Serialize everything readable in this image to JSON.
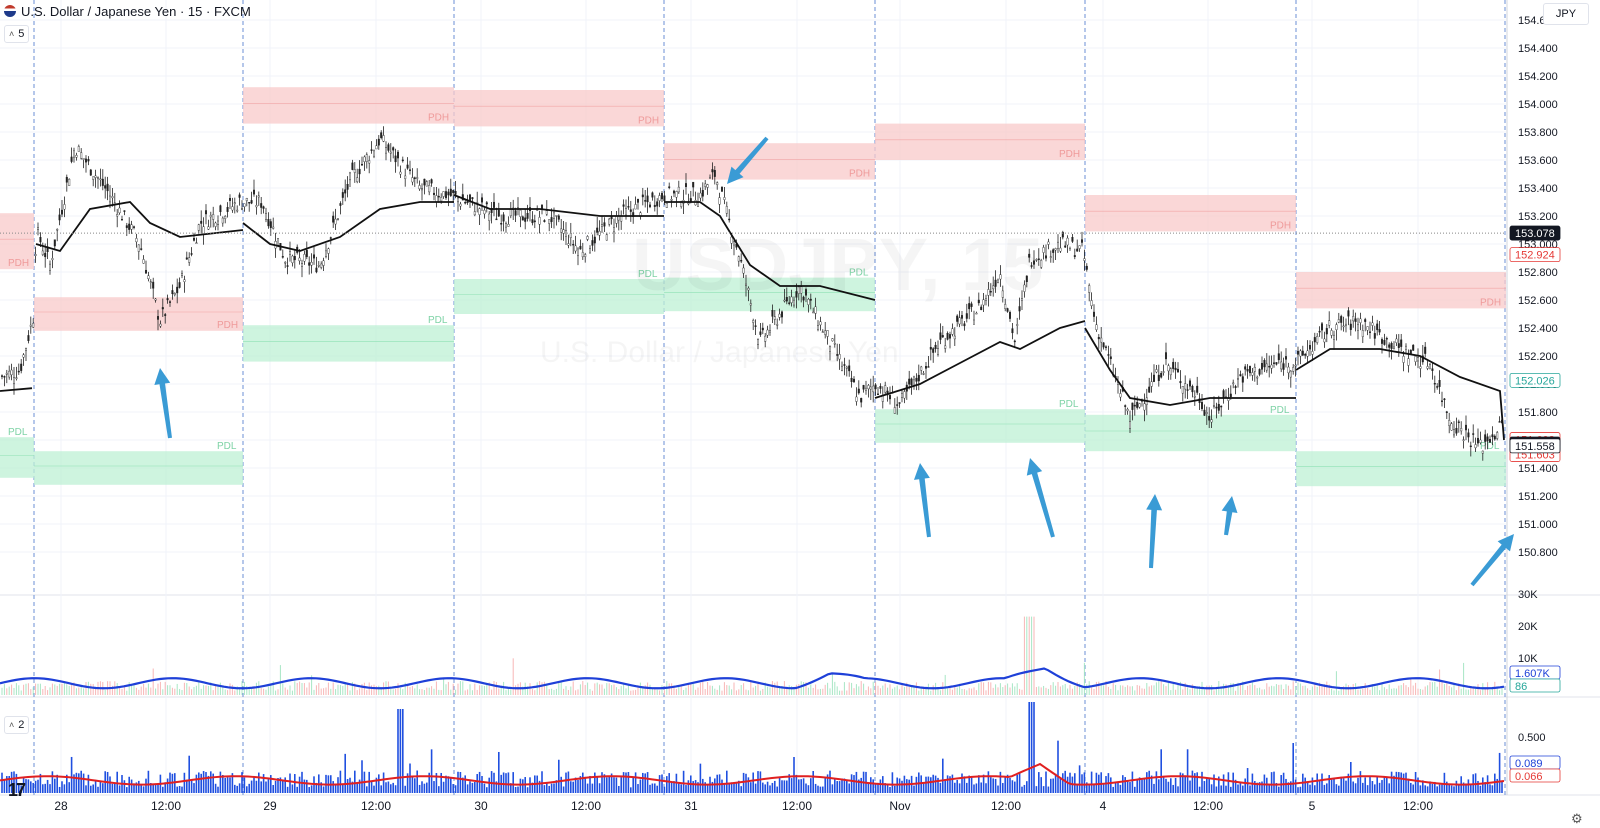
{
  "header": {
    "title": "U.S. Dollar / Japanese Yen · 15 · FXCM",
    "collapse_label": "5",
    "indicator2_label": "2",
    "currency_button": "JPY",
    "watermark_symbol": "USDJPY, 15",
    "watermark_name": "U.S. Dollar / Japanese Yen"
  },
  "colors": {
    "pdh_zone": "#f8c9c9",
    "pdl_zone": "#bdf0d4",
    "arrow": "#3a9bd5",
    "vwap": "#111111",
    "volume_ma": "#1e40d8",
    "rsi_bar": "#1f4fe0",
    "rsi_ma": "#e02020"
  },
  "price_axis": {
    "ticks": [
      "154.600",
      "154.400",
      "154.200",
      "154.000",
      "153.800",
      "153.600",
      "153.400",
      "153.200",
      "153.000",
      "152.800",
      "152.600",
      "152.400",
      "152.200",
      "152.000",
      "151.800",
      "151.600",
      "151.400",
      "151.200",
      "151.000",
      "150.800"
    ],
    "tick_values": [
      154.6,
      154.4,
      154.2,
      154.0,
      153.8,
      153.6,
      153.4,
      153.2,
      153.0,
      152.8,
      152.6,
      152.4,
      152.2,
      152.0,
      151.8,
      151.6,
      151.4,
      151.2,
      151.0,
      150.8
    ],
    "badges": [
      {
        "label": "153.078",
        "value": 153.078,
        "bg": "#131722",
        "fg": "#ffffff"
      },
      {
        "label": "152.924",
        "value": 152.924,
        "bg": "#ffffff",
        "fg": "#e53935"
      },
      {
        "label": "152.026",
        "value": 152.026,
        "bg": "#ffffff",
        "fg": "#26a69a"
      },
      {
        "label": "151.603",
        "value": 151.603,
        "bg": "#ffffff",
        "fg": "#e53935",
        "offset": 0
      },
      {
        "label": "151.603",
        "value": 151.603,
        "bg": "#ffffff",
        "fg": "#e53935",
        "offset": 1
      },
      {
        "label": "151.571",
        "value": 151.571,
        "bg": "#131722",
        "fg": "#ffffff"
      },
      {
        "label": "151.558",
        "value": 151.558,
        "bg": "#ffffff",
        "fg": "#131722"
      }
    ]
  },
  "volume_axis": {
    "ticks": [
      "30K",
      "20K",
      "10K"
    ],
    "badges": [
      {
        "label": "1.607K",
        "fg": "#1e40d8"
      },
      {
        "label": "86",
        "fg": "#26a69a"
      }
    ]
  },
  "rsi_axis": {
    "ticks": [
      "0.500"
    ],
    "badges": [
      {
        "label": "0.089",
        "fg": "#1e40d8"
      },
      {
        "label": "0.066",
        "fg": "#e53935"
      }
    ]
  },
  "time_axis": {
    "labels": [
      {
        "text": "28"
      },
      {
        "text": "12:00"
      },
      {
        "text": "29"
      },
      {
        "text": "12:00"
      },
      {
        "text": "30"
      },
      {
        "text": "12:00"
      },
      {
        "text": "31"
      },
      {
        "text": "12:00"
      },
      {
        "text": "Nov"
      },
      {
        "text": "12:00"
      },
      {
        "text": "4"
      },
      {
        "text": "12:00"
      },
      {
        "text": "5"
      },
      {
        "text": "12:00"
      }
    ]
  },
  "zones": [
    {
      "type": "PDH",
      "label": "PDH",
      "day": 0,
      "hi": 153.22,
      "lo": 152.82
    },
    {
      "type": "PDL",
      "label": "PDL",
      "day": 0,
      "hi": 151.62,
      "lo": 151.33
    },
    {
      "type": "PDH",
      "label": "PDH",
      "day": 1,
      "hi": 152.62,
      "lo": 152.38
    },
    {
      "type": "PDL",
      "label": "PDL",
      "day": 1,
      "hi": 151.52,
      "lo": 151.28
    },
    {
      "type": "PDH",
      "label": "PDH",
      "day": 2,
      "hi": 154.12,
      "lo": 153.86
    },
    {
      "type": "PDL",
      "label": "PDL",
      "day": 2,
      "hi": 152.42,
      "lo": 152.16
    },
    {
      "type": "PDH",
      "label": "PDH",
      "day": 3,
      "hi": 154.1,
      "lo": 153.84
    },
    {
      "type": "PDL",
      "label": "PDL",
      "day": 3,
      "hi": 152.75,
      "lo": 152.5
    },
    {
      "type": "PDH",
      "label": "PDH",
      "day": 4,
      "hi": 153.72,
      "lo": 153.46
    },
    {
      "type": "PDL",
      "label": "PDL",
      "day": 4,
      "hi": 152.76,
      "lo": 152.52
    },
    {
      "type": "PDH",
      "label": "PDH",
      "day": 5,
      "hi": 153.86,
      "lo": 153.6
    },
    {
      "type": "PDL",
      "label": "PDL",
      "day": 5,
      "hi": 151.82,
      "lo": 151.58
    },
    {
      "type": "PDH",
      "label": "PDH",
      "day": 6,
      "hi": 153.35,
      "lo": 153.09
    },
    {
      "type": "PDL",
      "label": "PDL",
      "day": 6,
      "hi": 151.78,
      "lo": 151.52
    },
    {
      "type": "PDH",
      "label": "PDH",
      "day": 7,
      "hi": 152.8,
      "lo": 152.54
    },
    {
      "type": "PDL",
      "label": "PDL",
      "day": 7,
      "hi": 151.52,
      "lo": 151.27
    }
  ]
}
